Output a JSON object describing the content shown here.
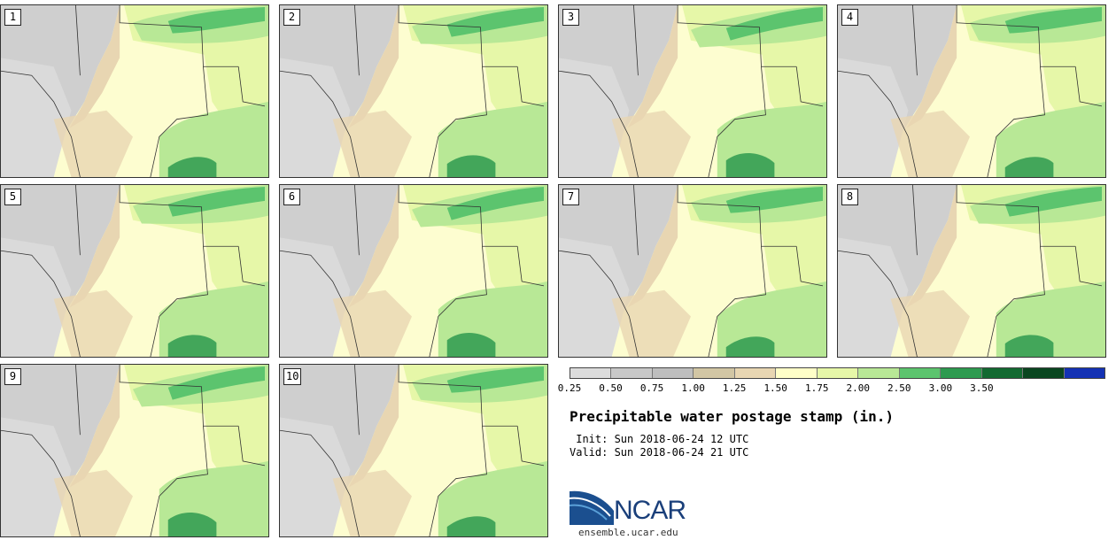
{
  "panels": [
    {
      "label": "1"
    },
    {
      "label": "2"
    },
    {
      "label": "3"
    },
    {
      "label": "4"
    },
    {
      "label": "5"
    },
    {
      "label": "6"
    },
    {
      "label": "7"
    },
    {
      "label": "8"
    },
    {
      "label": "9"
    },
    {
      "label": "10"
    }
  ],
  "colorbar": {
    "colors": [
      "#dcdcdc",
      "#c8c8c8",
      "#bebebe",
      "#d2c6a4",
      "#e8d6b2",
      "#ffffc8",
      "#e6f7a8",
      "#b8e896",
      "#5cc46e",
      "#2e9a50",
      "#136a32",
      "#0a4620",
      "#1432b4"
    ],
    "ticks": [
      "0.25",
      "0.50",
      "0.75",
      "1.00",
      "1.25",
      "1.50",
      "1.75",
      "2.00",
      "2.50",
      "3.00",
      "3.50"
    ]
  },
  "title": "Precipitable water postage stamp (in.)",
  "init": " Init: Sun 2018-06-24 12 UTC",
  "valid": "Valid: Sun 2018-06-24 21 UTC",
  "logo": {
    "text": "NCAR",
    "site": "ensemble.ucar.edu"
  }
}
